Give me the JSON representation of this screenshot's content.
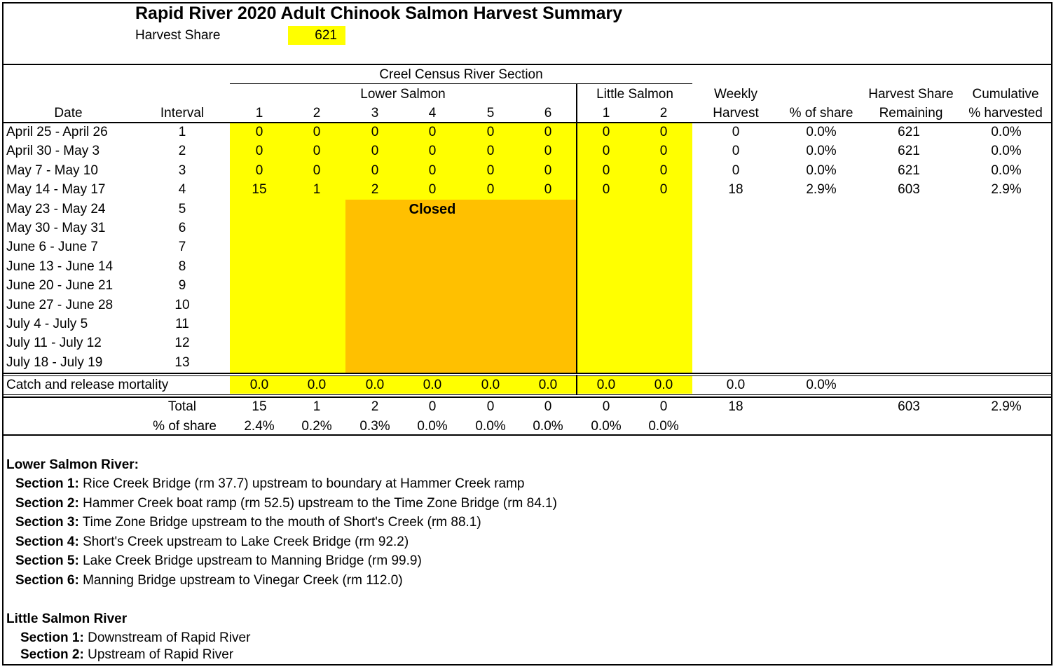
{
  "title": "Rapid River 2020 Adult Chinook Salmon Harvest Summary",
  "harvest_share": {
    "label": "Harvest Share",
    "value": "621"
  },
  "header": {
    "creel_census": "Creel Census River Section",
    "lower_salmon": "Lower Salmon",
    "little_salmon": "Little Salmon",
    "date": "Date",
    "interval": "Interval",
    "lower_sections": [
      "1",
      "2",
      "3",
      "4",
      "5",
      "6"
    ],
    "little_sections": [
      "1",
      "2"
    ],
    "weekly_1": "Weekly",
    "weekly_2": "Harvest",
    "pct_share": "% of share",
    "hs_remaining_1": "Harvest Share",
    "hs_remaining_2": "Remaining",
    "cumulative_1": "Cumulative",
    "cumulative_2": "% harvested"
  },
  "rows": [
    {
      "date": "April 25 - April 26",
      "interval": "1",
      "cells": [
        "0",
        "0",
        "0",
        "0",
        "0",
        "0",
        "0",
        "0"
      ],
      "weekly": "0",
      "pct": "0.0%",
      "remaining": "621",
      "cum": "0.0%"
    },
    {
      "date": "April 30 - May 3",
      "interval": "2",
      "cells": [
        "0",
        "0",
        "0",
        "0",
        "0",
        "0",
        "0",
        "0"
      ],
      "weekly": "0",
      "pct": "0.0%",
      "remaining": "621",
      "cum": "0.0%"
    },
    {
      "date": "May 7 - May 10",
      "interval": "3",
      "cells": [
        "0",
        "0",
        "0",
        "0",
        "0",
        "0",
        "0",
        "0"
      ],
      "weekly": "0",
      "pct": "0.0%",
      "remaining": "621",
      "cum": "0.0%"
    },
    {
      "date": "May 14 - May 17",
      "interval": "4",
      "cells": [
        "15",
        "1",
        "2",
        "0",
        "0",
        "0",
        "0",
        "0"
      ],
      "weekly": "18",
      "pct": "2.9%",
      "remaining": "603",
      "cum": "2.9%"
    },
    {
      "date": "May 23 - May 24",
      "interval": "5"
    },
    {
      "date": "May 30 - May 31",
      "interval": "6"
    },
    {
      "date": "June 6 - June 7",
      "interval": "7"
    },
    {
      "date": "June 13 - June 14",
      "interval": "8"
    },
    {
      "date": "June 20 - June 21",
      "interval": "9"
    },
    {
      "date": "June 27 - June 28",
      "interval": "10"
    },
    {
      "date": "July 4 - July 5",
      "interval": "11"
    },
    {
      "date": "July 11 - July 12",
      "interval": "12"
    },
    {
      "date": "July 18 - July 19",
      "interval": "13"
    }
  ],
  "closed_label": "Closed",
  "mortality": {
    "label": "Catch and release mortality",
    "cells": [
      "0.0",
      "0.0",
      "0.0",
      "0.0",
      "0.0",
      "0.0",
      "0.0",
      "0.0"
    ],
    "weekly": "0.0",
    "pct": "0.0%"
  },
  "total": {
    "label": "Total",
    "cells": [
      "15",
      "1",
      "2",
      "0",
      "0",
      "0",
      "0",
      "0"
    ],
    "weekly": "18",
    "remaining": "603",
    "cum": "2.9%"
  },
  "share": {
    "label": "% of share",
    "cells": [
      "2.4%",
      "0.2%",
      "0.3%",
      "0.0%",
      "0.0%",
      "0.0%",
      "0.0%",
      "0.0%"
    ]
  },
  "notes": {
    "lower_heading": "Lower Salmon River:",
    "lower_sections": [
      {
        "label": "Section 1:",
        "text": "Rice Creek Bridge (rm 37.7) upstream to boundary at Hammer Creek ramp"
      },
      {
        "label": "Section 2:",
        "text": "Hammer Creek boat ramp (rm 52.5) upstream to the Time Zone Bridge (rm 84.1)"
      },
      {
        "label": "Section 3:",
        "text": "Time Zone Bridge upstream to the mouth of Short's Creek (rm 88.1)"
      },
      {
        "label": "Section 4:",
        "text": "Short's Creek upstream to Lake Creek Bridge (rm 92.2)"
      },
      {
        "label": "Section 5:",
        "text": "Lake Creek Bridge upstream to Manning Bridge (rm 99.9)"
      },
      {
        "label": "Section 6:",
        "text": "Manning Bridge upstream to Vinegar Creek (rm 112.0)"
      }
    ],
    "little_heading": "Little Salmon River",
    "little_sections": [
      {
        "label": "Section 1:",
        "text": "Downstream of Rapid River"
      },
      {
        "label": "Section 2:",
        "text": "Upstream of Rapid River"
      }
    ]
  },
  "colors": {
    "yellow": "#ffff00",
    "orange": "#ffc000"
  }
}
